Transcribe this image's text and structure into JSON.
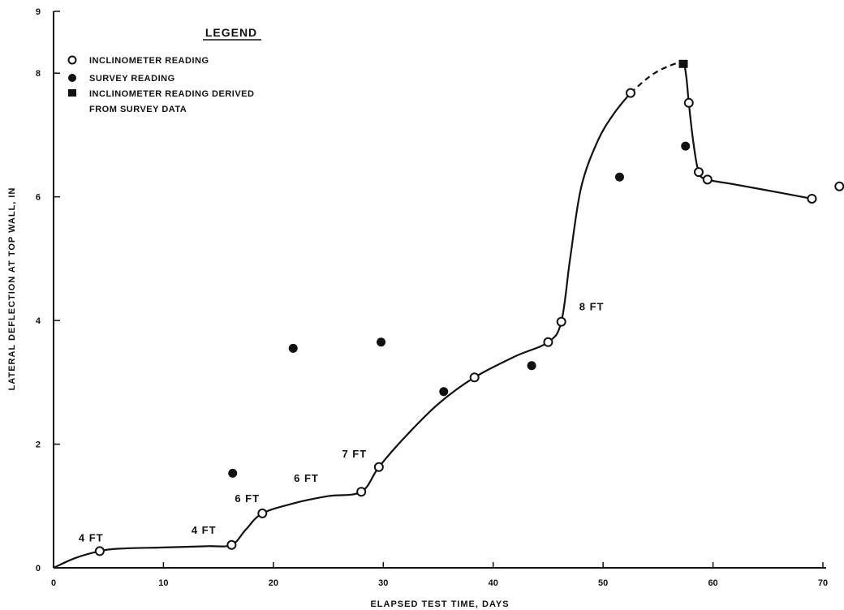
{
  "chart_data": {
    "type": "scatter",
    "xlabel": "ELAPSED TEST TIME, DAYS",
    "ylabel": "LATERAL DEFLECTION AT TOP WALL, IN",
    "xlim": [
      0,
      70
    ],
    "ylim": [
      0,
      9
    ],
    "x_ticks": [
      0,
      10,
      20,
      30,
      40,
      50,
      60,
      70
    ],
    "y_ticks": [
      0,
      2,
      4,
      6,
      8,
      9
    ],
    "grid": false,
    "legend": {
      "title": "LEGEND",
      "position": "top-left",
      "entries": [
        {
          "marker": "open-circle",
          "label": "INCLINOMETER READING"
        },
        {
          "marker": "filled-circle",
          "label": "SURVEY READING"
        },
        {
          "marker": "filled-square",
          "label": "INCLINOMETER READING DERIVED",
          "label2": "FROM SURVEY DATA"
        }
      ]
    },
    "series": [
      {
        "name": "INCLINOMETER READING",
        "marker": "open-circle",
        "points": [
          [
            4.2,
            0.27
          ],
          [
            16.2,
            0.37
          ],
          [
            19.0,
            0.88
          ],
          [
            28.0,
            1.23
          ],
          [
            29.6,
            1.63
          ],
          [
            38.3,
            3.08
          ],
          [
            45.0,
            3.65
          ],
          [
            46.2,
            3.98
          ],
          [
            52.5,
            7.68
          ],
          [
            57.8,
            7.52
          ],
          [
            58.7,
            6.4
          ],
          [
            59.5,
            6.28
          ],
          [
            69.0,
            5.97
          ],
          [
            71.5,
            6.17
          ]
        ]
      },
      {
        "name": "SURVEY READING",
        "marker": "filled-circle",
        "points": [
          [
            16.3,
            1.53
          ],
          [
            21.8,
            3.55
          ],
          [
            29.8,
            3.65
          ],
          [
            35.5,
            2.85
          ],
          [
            43.5,
            3.27
          ],
          [
            51.5,
            6.32
          ],
          [
            57.5,
            6.82
          ]
        ]
      },
      {
        "name": "INCLINOMETER READING DERIVED FROM SURVEY DATA",
        "marker": "filled-square",
        "points": [
          [
            57.3,
            8.15
          ]
        ]
      }
    ],
    "curve": {
      "solid": [
        [
          0,
          0
        ],
        [
          2,
          0.16
        ],
        [
          4.2,
          0.27
        ],
        [
          6,
          0.31
        ],
        [
          10,
          0.33
        ],
        [
          14,
          0.35
        ],
        [
          16.2,
          0.37
        ],
        [
          17.5,
          0.62
        ],
        [
          19.0,
          0.88
        ],
        [
          22,
          1.05
        ],
        [
          25,
          1.16
        ],
        [
          28.0,
          1.23
        ],
        [
          29.6,
          1.63
        ],
        [
          32,
          2.12
        ],
        [
          35,
          2.65
        ],
        [
          38.3,
          3.08
        ],
        [
          42,
          3.42
        ],
        [
          45.0,
          3.65
        ],
        [
          46.2,
          3.98
        ],
        [
          47,
          5.0
        ],
        [
          48,
          6.15
        ],
        [
          49.5,
          6.9
        ],
        [
          51,
          7.35
        ],
        [
          52.5,
          7.68
        ]
      ],
      "dashed": [
        [
          52.5,
          7.68
        ],
        [
          54.5,
          7.98
        ],
        [
          56.5,
          8.15
        ],
        [
          57.4,
          8.15
        ]
      ],
      "solid2": [
        [
          57.4,
          8.15
        ],
        [
          57.6,
          7.9
        ],
        [
          57.8,
          7.52
        ],
        [
          58.2,
          6.9
        ],
        [
          58.7,
          6.4
        ],
        [
          59.5,
          6.28
        ],
        [
          62,
          6.2
        ],
        [
          66,
          6.07
        ],
        [
          69.0,
          5.97
        ]
      ]
    },
    "annotations": [
      {
        "text": "4 FT",
        "x": 4.2,
        "y": 0.27
      },
      {
        "text": "4 FT",
        "x": 15.2,
        "y": 0.37
      },
      {
        "text": "6 FT",
        "x": 19.0,
        "y": 0.88
      },
      {
        "text": "6 FT",
        "x": 26.0,
        "y": 1.23
      },
      {
        "text": "7 FT",
        "x": 29.2,
        "y": 1.63
      },
      {
        "text": "8 FT",
        "x": 46.5,
        "y": 3.98
      }
    ]
  }
}
